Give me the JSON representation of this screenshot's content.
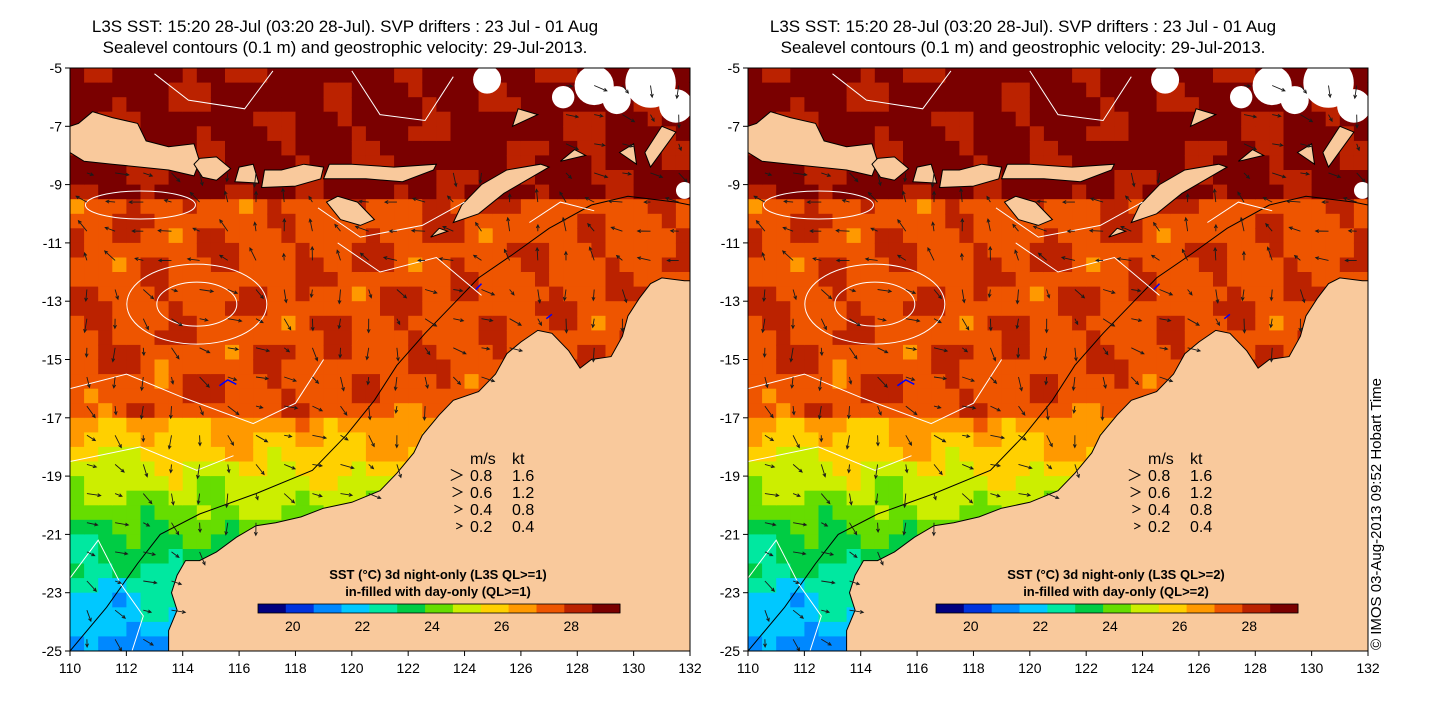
{
  "panels": [
    {
      "title_line1": "L3S SST: 15:20 28-Jul (03:20 28-Jul). SVP drifters : 23 Jul - 01 Aug",
      "title_line2": "Sealevel contours (0.1 m) and geostrophic velocity: 29-Jul-2013.",
      "legend_line1": "SST (°C)  3d night-only (L3S QL>=1)",
      "legend_line2": "in-filled with day-only (QL>=1)"
    },
    {
      "title_line1": "L3S SST: 15:20 28-Jul (03:20 28-Jul). SVP drifters : 23 Jul - 01 Aug",
      "title_line2": "Sealevel contours (0.1 m) and geostrophic velocity: 29-Jul-2013.",
      "legend_line1": "SST (°C)  3d night-only (L3S QL>=2)",
      "legend_line2": "in-filled with day-only (QL>=2)"
    }
  ],
  "axes": {
    "x_ticks": [
      "110",
      "112",
      "114",
      "116",
      "118",
      "120",
      "122",
      "124",
      "126",
      "128",
      "130",
      "132"
    ],
    "y_ticks": [
      "-5",
      "-7",
      "-9",
      "-11",
      "-13",
      "-15",
      "-17",
      "-19",
      "-21",
      "-23",
      "-25"
    ]
  },
  "velocity_key": {
    "header_ms": "m/s",
    "header_kt": "kt",
    "rows": [
      {
        "ms": "0.8",
        "kt": "1.6",
        "speed": 0.8
      },
      {
        "ms": "0.6",
        "kt": "1.2",
        "speed": 0.6
      },
      {
        "ms": "0.4",
        "kt": "0.8",
        "speed": 0.4
      },
      {
        "ms": "0.2",
        "kt": "0.4",
        "speed": 0.2
      }
    ]
  },
  "colorbar": {
    "ticks": [
      "20",
      "22",
      "24",
      "26",
      "28"
    ],
    "range": [
      19,
      29.4
    ],
    "colors": [
      "#00007f",
      "#0033dd",
      "#0088ff",
      "#00c8ff",
      "#00e8a0",
      "#00cc44",
      "#66dd00",
      "#ccee00",
      "#ffd000",
      "#ff9900",
      "#ee5500",
      "#bb2200",
      "#7a0000"
    ]
  },
  "colors": {
    "land": "#f9c99c",
    "contour": "#ffffff",
    "coast": "#000000",
    "arrows": "#1a1a1a",
    "rivers": "#0000ff"
  },
  "credit": "© IMOS 03-Aug-2013 09:52 Hobart Time"
}
